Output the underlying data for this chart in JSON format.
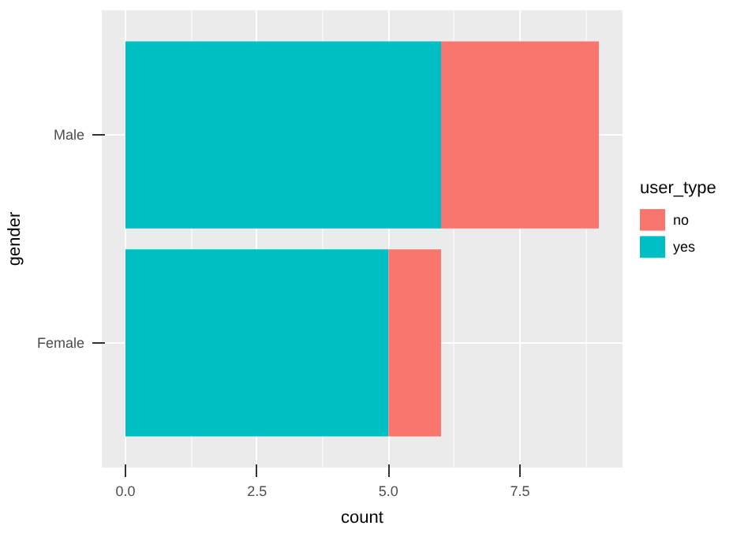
{
  "chart_data": {
    "type": "bar",
    "orientation": "horizontal",
    "stacked": true,
    "xlabel": "count",
    "ylabel": "gender",
    "legend_title": "user_type",
    "legend": "right",
    "grid": true,
    "categories": [
      "Male",
      "Female"
    ],
    "series": [
      {
        "name": "yes",
        "color": "#00bfc4",
        "values": [
          6,
          5
        ]
      },
      {
        "name": "no",
        "color": "#f8766d",
        "values": [
          3,
          1
        ]
      }
    ],
    "xlim": [
      -0.45,
      9.45
    ],
    "xticks": [
      {
        "value": 0,
        "label": "0.0"
      },
      {
        "value": 2.5,
        "label": "2.5"
      },
      {
        "value": 5,
        "label": "5.0"
      },
      {
        "value": 7.5,
        "label": "7.5"
      }
    ]
  }
}
